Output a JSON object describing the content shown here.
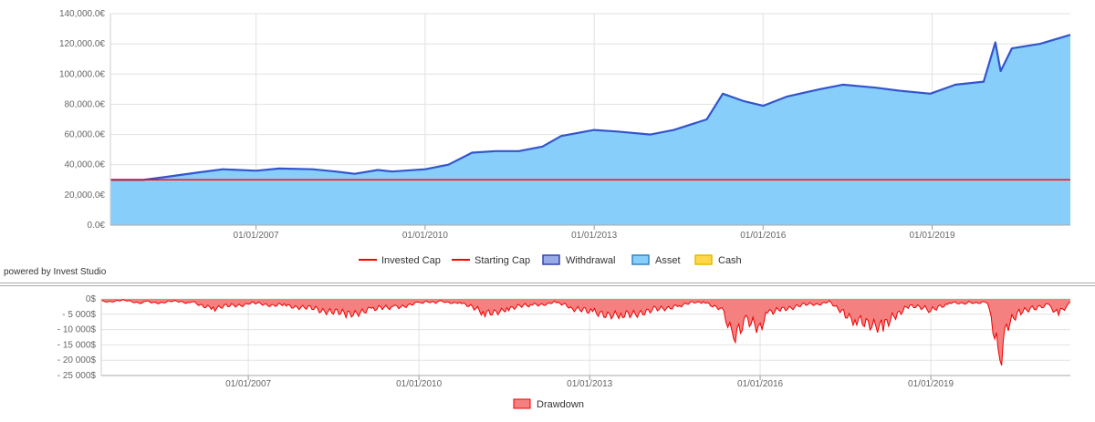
{
  "footer": {
    "powered_by": "powered by Invest Studio"
  },
  "colors": {
    "asset_fill": "#87CEFA",
    "asset_line": "#3355CC",
    "invested_cap": "#FF0000",
    "starting_cap": "#FF0000",
    "withdrawal_fill": "#99AAE6",
    "withdrawal_border": "#3344AA",
    "cash_fill": "#FFD84A",
    "cash_border": "#E6B800",
    "drawdown_fill": "#F48080",
    "drawdown_line": "#EE0000",
    "grid": "#E2E2E2"
  },
  "chart_data": [
    {
      "type": "area",
      "title": "",
      "x_range": [
        "2004-06-01",
        "2021-06-15"
      ],
      "ylim": [
        0,
        140000
      ],
      "y_ticks": [
        0,
        20000,
        40000,
        60000,
        80000,
        100000,
        120000,
        140000
      ],
      "y_tick_labels": [
        "0.0€",
        "20,000.0€",
        "40,000.0€",
        "60,000.0€",
        "80,000.0€",
        "100,000.0€",
        "120,000.0€",
        "140,000.0€"
      ],
      "x_ticks": [
        "2007-01-01",
        "2010-01-01",
        "2013-01-01",
        "2016-01-01",
        "2019-01-01"
      ],
      "x_tick_labels": [
        "01/01/2007",
        "01/01/2010",
        "01/01/2013",
        "01/01/2016",
        "01/01/2019"
      ],
      "grid": true,
      "legend_position": "bottom-center",
      "legend": [
        "Invested Cap",
        "Starting Cap",
        "Withdrawal",
        "Asset",
        "Cash"
      ],
      "series": [
        {
          "name": "Asset",
          "x": [
            "2004-06-01",
            "2005-01-01",
            "2005-06-01",
            "2006-01-01",
            "2006-06-01",
            "2007-01-01",
            "2007-06-01",
            "2008-01-01",
            "2008-06-01",
            "2008-10-01",
            "2009-03-01",
            "2009-06-01",
            "2010-01-01",
            "2010-06-01",
            "2010-11-01",
            "2011-04-01",
            "2011-09-01",
            "2012-02-01",
            "2012-06-01",
            "2013-01-01",
            "2013-06-01",
            "2014-01-01",
            "2014-06-01",
            "2015-01-01",
            "2015-04-15",
            "2015-09-01",
            "2016-01-01",
            "2016-06-01",
            "2017-01-01",
            "2017-06-01",
            "2018-01-01",
            "2018-06-01",
            "2018-12-20",
            "2019-06-01",
            "2019-12-01",
            "2020-02-15",
            "2020-03-20",
            "2020-06-01",
            "2020-12-01",
            "2021-06-15"
          ],
          "values": [
            30000,
            30000,
            32000,
            35000,
            37000,
            36000,
            37500,
            37000,
            35500,
            34000,
            36500,
            35500,
            37000,
            40000,
            48000,
            49000,
            49000,
            52000,
            59000,
            63000,
            62000,
            60000,
            63000,
            70000,
            87000,
            82000,
            79000,
            85000,
            90000,
            93000,
            91000,
            89000,
            87000,
            93000,
            95000,
            121000,
            102000,
            117000,
            120000,
            126000
          ]
        },
        {
          "name": "Invested Cap",
          "x": [
            "2004-06-01",
            "2021-06-15"
          ],
          "values": [
            30000,
            30000
          ]
        },
        {
          "name": "Starting Cap",
          "x": [
            "2004-06-01",
            "2021-06-15"
          ],
          "values": [
            30000,
            30000
          ]
        }
      ]
    },
    {
      "type": "area",
      "title": "",
      "x_range": [
        "2004-06-01",
        "2021-06-15"
      ],
      "ylim": [
        -25000,
        0
      ],
      "y_ticks": [
        0,
        -5000,
        -10000,
        -15000,
        -20000,
        -25000
      ],
      "y_tick_labels": [
        "0$",
        "- 5 000$",
        "- 10 000$",
        "- 15 000$",
        "- 20 000$",
        "- 25 000$"
      ],
      "x_ticks": [
        "2007-01-01",
        "2010-01-01",
        "2013-01-01",
        "2016-01-01",
        "2019-01-01"
      ],
      "x_tick_labels": [
        "01/01/2007",
        "01/01/2010",
        "01/01/2013",
        "01/01/2016",
        "01/01/2019"
      ],
      "grid": true,
      "legend_position": "bottom-center",
      "legend": [
        "Drawdown"
      ],
      "series": [
        {
          "name": "Drawdown",
          "x": [
            "2004-06-01",
            "2005-03-01",
            "2006-01-01",
            "2006-06-01",
            "2007-01-01",
            "2007-09-01",
            "2008-04-01",
            "2008-10-01",
            "2009-03-01",
            "2009-08-01",
            "2010-01-01",
            "2010-05-01",
            "2010-10-01",
            "2011-03-01",
            "2011-08-01",
            "2012-01-01",
            "2012-06-01",
            "2012-09-01",
            "2013-02-01",
            "2013-08-01",
            "2014-03-01",
            "2014-08-01",
            "2015-01-01",
            "2015-05-01",
            "2015-07-15",
            "2015-10-01",
            "2016-01-01",
            "2016-03-01",
            "2016-06-01",
            "2017-01-01",
            "2017-04-01",
            "2017-07-01",
            "2017-09-01",
            "2018-03-01",
            "2018-06-01",
            "2018-09-01",
            "2019-01-01",
            "2019-05-01",
            "2019-09-01",
            "2020-01-01",
            "2020-03-20",
            "2020-05-01",
            "2020-08-01",
            "2020-12-01",
            "2021-02-01",
            "2021-04-01",
            "2021-06-15"
          ],
          "values": [
            -500,
            -1000,
            -1000,
            -3000,
            -1500,
            -2000,
            -3500,
            -5000,
            -3500,
            -2500,
            -1500,
            -1000,
            -1000,
            -5000,
            -3000,
            -2000,
            -1000,
            -3000,
            -4500,
            -5500,
            -3500,
            -2000,
            -1000,
            -3000,
            -12500,
            -7000,
            -9500,
            -4000,
            -3000,
            -1500,
            -1000,
            -5000,
            -7000,
            -9000,
            -5000,
            -2000,
            -4000,
            -1500,
            -1000,
            -1000,
            -20000,
            -9000,
            -4000,
            -3000,
            -2000,
            -5000,
            -1000
          ]
        }
      ]
    }
  ]
}
